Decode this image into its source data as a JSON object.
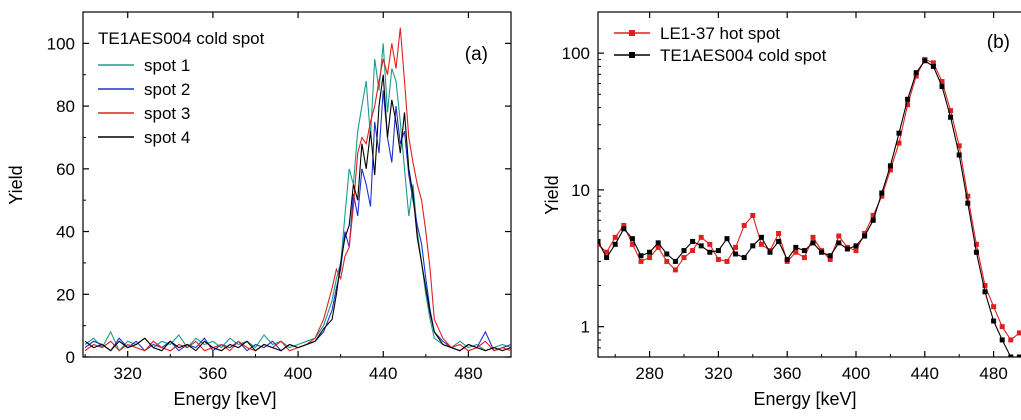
{
  "chart_data": [
    {
      "type": "line",
      "panel_label": "(a)",
      "xlabel": "Energy [keV]",
      "ylabel": "Yield",
      "xlim": [
        299,
        500
      ],
      "ylim": [
        0,
        110
      ],
      "xticks": [
        320,
        360,
        400,
        440,
        480
      ],
      "yticks": [
        0,
        20,
        40,
        60,
        80,
        100
      ],
      "legend_title": "TE1AES004 cold spot",
      "legend_position": "top-left",
      "series": [
        {
          "name": "spot 1",
          "color": "#1a9c8c",
          "x": [
            300,
            304,
            308,
            312,
            316,
            320,
            324,
            328,
            332,
            336,
            340,
            344,
            348,
            352,
            356,
            360,
            364,
            368,
            372,
            376,
            380,
            384,
            388,
            392,
            396,
            400,
            404,
            408,
            412,
            416,
            418,
            420,
            422,
            424,
            426,
            428,
            430,
            432,
            434,
            436,
            438,
            440,
            442,
            444,
            446,
            448,
            450,
            452,
            454,
            456,
            458,
            460,
            462,
            464,
            468,
            472,
            476,
            480,
            484,
            488,
            492,
            496,
            500
          ],
          "y": [
            4,
            6,
            3,
            8,
            2,
            5,
            4,
            6,
            3,
            5,
            4,
            7,
            3,
            6,
            4,
            5,
            3,
            6,
            4,
            5,
            3,
            7,
            4,
            5,
            3,
            4,
            5,
            6,
            10,
            18,
            25,
            30,
            45,
            60,
            55,
            72,
            80,
            88,
            70,
            95,
            85,
            100,
            78,
            92,
            88,
            75,
            60,
            45,
            55,
            40,
            30,
            20,
            12,
            6,
            4,
            3,
            5,
            3,
            4,
            2,
            3,
            4,
            3
          ]
        },
        {
          "name": "spot 2",
          "color": "#2030d0",
          "x": [
            300,
            304,
            308,
            312,
            316,
            320,
            324,
            328,
            332,
            336,
            340,
            344,
            348,
            352,
            356,
            360,
            364,
            368,
            372,
            376,
            380,
            384,
            388,
            392,
            396,
            400,
            404,
            408,
            412,
            416,
            418,
            420,
            422,
            424,
            426,
            428,
            430,
            432,
            434,
            436,
            438,
            440,
            442,
            444,
            446,
            448,
            450,
            452,
            454,
            456,
            458,
            460,
            462,
            464,
            468,
            472,
            476,
            480,
            484,
            488,
            492,
            496,
            500
          ],
          "y": [
            3,
            5,
            4,
            2,
            6,
            3,
            5,
            2,
            4,
            3,
            5,
            2,
            4,
            3,
            6,
            2,
            4,
            3,
            5,
            2,
            4,
            3,
            5,
            2,
            4,
            3,
            4,
            5,
            8,
            15,
            22,
            28,
            40,
            35,
            52,
            45,
            60,
            55,
            48,
            75,
            65,
            85,
            70,
            62,
            80,
            68,
            72,
            58,
            50,
            42,
            36,
            25,
            15,
            8,
            5,
            3,
            2,
            4,
            3,
            8,
            2,
            3,
            4
          ]
        },
        {
          "name": "spot 3",
          "color": "#e02020",
          "x": [
            300,
            304,
            308,
            312,
            316,
            320,
            324,
            328,
            332,
            336,
            340,
            344,
            348,
            352,
            356,
            360,
            364,
            368,
            372,
            376,
            380,
            384,
            388,
            392,
            396,
            400,
            404,
            408,
            412,
            416,
            418,
            420,
            422,
            424,
            426,
            428,
            430,
            432,
            434,
            436,
            438,
            440,
            442,
            444,
            446,
            448,
            450,
            452,
            454,
            456,
            458,
            460,
            462,
            464,
            468,
            472,
            476,
            480,
            484,
            488,
            492,
            496,
            500
          ],
          "y": [
            2,
            4,
            3,
            5,
            2,
            4,
            3,
            2,
            5,
            3,
            2,
            4,
            3,
            5,
            2,
            3,
            4,
            2,
            5,
            3,
            2,
            4,
            3,
            5,
            2,
            3,
            4,
            6,
            12,
            22,
            28,
            25,
            32,
            35,
            48,
            65,
            70,
            68,
            75,
            80,
            88,
            95,
            90,
            100,
            92,
            105,
            88,
            70,
            62,
            55,
            50,
            40,
            28,
            12,
            6,
            3,
            4,
            2,
            3,
            5,
            2,
            3,
            2
          ]
        },
        {
          "name": "spot 4",
          "color": "#000000",
          "x": [
            300,
            304,
            308,
            312,
            316,
            320,
            324,
            328,
            332,
            336,
            340,
            344,
            348,
            352,
            356,
            360,
            364,
            368,
            372,
            376,
            380,
            384,
            388,
            392,
            396,
            400,
            404,
            408,
            412,
            416,
            418,
            420,
            422,
            424,
            426,
            428,
            430,
            432,
            434,
            436,
            438,
            440,
            442,
            444,
            446,
            448,
            450,
            452,
            454,
            456,
            458,
            460,
            462,
            464,
            468,
            472,
            476,
            480,
            484,
            488,
            492,
            496,
            500
          ],
          "y": [
            5,
            3,
            4,
            2,
            5,
            3,
            4,
            6,
            3,
            2,
            5,
            3,
            4,
            2,
            5,
            3,
            2,
            4,
            3,
            5,
            2,
            4,
            3,
            2,
            4,
            3,
            4,
            5,
            9,
            12,
            20,
            30,
            38,
            42,
            55,
            50,
            68,
            60,
            72,
            58,
            80,
            90,
            70,
            82,
            75,
            65,
            78,
            60,
            52,
            38,
            30,
            22,
            14,
            8,
            4,
            3,
            2,
            4,
            3,
            2,
            3,
            2,
            3
          ]
        }
      ]
    },
    {
      "type": "line",
      "panel_label": "(b)",
      "xlabel": "Energy [keV]",
      "ylabel": "Yield",
      "yscale": "log",
      "xlim": [
        250,
        500
      ],
      "ylim": [
        0.6,
        200
      ],
      "xticks": [
        280,
        320,
        360,
        400,
        440,
        480
      ],
      "yticks": [
        1,
        10,
        100
      ],
      "ytick_labels": [
        "1",
        "10",
        "100"
      ],
      "legend_position": "top-left",
      "series": [
        {
          "name": "LE1-37 hot spot",
          "color": "#e02020",
          "marker": "square",
          "x": [
            250,
            255,
            260,
            265,
            270,
            275,
            280,
            285,
            290,
            295,
            300,
            305,
            310,
            315,
            320,
            325,
            330,
            335,
            340,
            345,
            350,
            355,
            360,
            365,
            370,
            375,
            380,
            385,
            390,
            395,
            400,
            405,
            410,
            415,
            420,
            425,
            430,
            435,
            440,
            445,
            450,
            455,
            460,
            465,
            470,
            475,
            480,
            485,
            490,
            495,
            500
          ],
          "y": [
            4,
            3.5,
            4.5,
            5.5,
            4,
            3,
            3.2,
            3.8,
            3,
            2.6,
            3.2,
            3.6,
            4.5,
            4,
            3.1,
            3,
            3.8,
            5.5,
            6.5,
            4,
            3.6,
            4.8,
            3,
            3.5,
            3.2,
            4.5,
            3.6,
            3.1,
            4.6,
            3.8,
            3.6,
            4.8,
            6.5,
            9,
            14,
            22,
            42,
            68,
            90,
            85,
            62,
            38,
            21,
            9,
            4,
            2,
            1.4,
            1,
            0.8,
            0.9,
            1
          ]
        },
        {
          "name": "TE1AES004 cold spot",
          "color": "#000000",
          "marker": "square",
          "x": [
            250,
            255,
            260,
            265,
            270,
            275,
            280,
            285,
            290,
            295,
            300,
            305,
            310,
            315,
            320,
            325,
            330,
            335,
            340,
            345,
            350,
            355,
            360,
            365,
            370,
            375,
            380,
            385,
            390,
            395,
            400,
            405,
            410,
            415,
            420,
            425,
            430,
            435,
            440,
            445,
            450,
            455,
            460,
            465,
            470,
            475,
            480,
            485,
            490,
            495,
            500
          ],
          "y": [
            4.2,
            3.2,
            4,
            5.2,
            4.4,
            3.3,
            3.5,
            4.1,
            3.4,
            3,
            3.6,
            4.2,
            3.9,
            3.5,
            3.6,
            4.4,
            3.4,
            3.2,
            3.9,
            4.5,
            3.5,
            4.2,
            3.1,
            3.8,
            3.6,
            4.1,
            3.5,
            3.3,
            4.1,
            3.7,
            3.9,
            4.6,
            6,
            9.5,
            15,
            26,
            46,
            72,
            88,
            80,
            57,
            34,
            18,
            8,
            3.5,
            1.8,
            1.1,
            0.8,
            0.6,
            0.6,
            0.6
          ]
        }
      ]
    }
  ]
}
